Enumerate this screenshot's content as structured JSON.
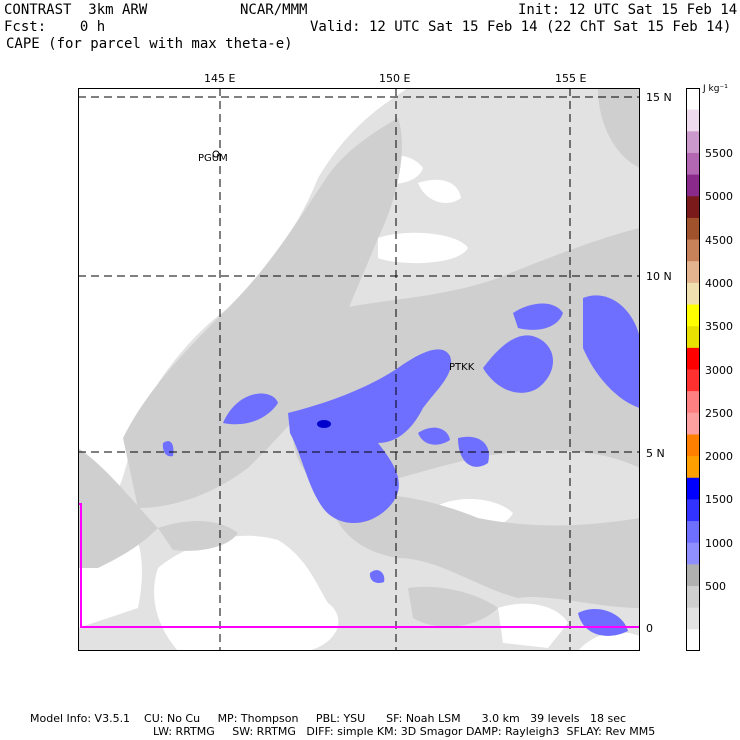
{
  "header": {
    "model": "CONTRAST  3km ARW",
    "org": "NCAR/MMM",
    "init": "Init: 12 UTC Sat 15 Feb 14",
    "fcst": "Fcst:    0 h",
    "valid": "Valid: 12 UTC Sat 15 Feb 14 (22 ChT Sat 15 Feb 14)",
    "field": "CAPE (for parcel with max theta-e)"
  },
  "map": {
    "lon_labels": [
      "145 E",
      "150 E",
      "155 E"
    ],
    "lat_labels": [
      "15 N",
      "10 N",
      "5 N",
      "0"
    ],
    "stations": [
      "PGUM",
      "PTKK"
    ]
  },
  "colorbar": {
    "unit": "J kg⁻¹",
    "labels": [
      "5500",
      "5000",
      "4500",
      "4000",
      "3500",
      "3000",
      "2500",
      "2000",
      "1500",
      "1000",
      "500"
    ],
    "colors": [
      "#ffffff",
      "#eedcee",
      "#cc99cc",
      "#b367b3",
      "#8a2a8a",
      "#7a1a1a",
      "#a0522d",
      "#c8825a",
      "#e4b48e",
      "#f0e0b0",
      "#ffff00",
      "#e8e000",
      "#ff0000",
      "#ff3030",
      "#ff8080",
      "#ffa0a0",
      "#ff8000",
      "#ffa000",
      "#0000ff",
      "#3333ff",
      "#6f6fff",
      "#8f8fff",
      "#b0b0b0",
      "#cfcfcf",
      "#e2e2e2",
      "#ffffff"
    ]
  },
  "footer": {
    "line1": "Model Info: V3.5.1    CU: No Cu     MP: Thompson     PBL: YSU      SF: Noah LSM      3.0 km   39 levels   18 sec",
    "line2": "LW: RRTMG     SW: RRTMG   DIFF: simple KM: 3D Smagor DAMP: Rayleigh3  SFLAY: Rev MM5"
  }
}
